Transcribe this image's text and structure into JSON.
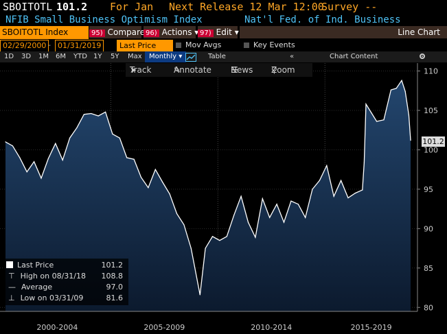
{
  "header": {
    "ticker": "SBOITOTL",
    "value": "101.2",
    "for_label": "For Jan",
    "next_release": "Next Release 12 Mar 12:00",
    "survey": "Survey --",
    "index_name": "NFIB Small Business Optimism Index",
    "source": "Nat'l Fed. of Ind. Business"
  },
  "toolbar_row": {
    "ticker_field": "SBOITOTL Index",
    "compare_num": "95)",
    "compare": "Compare",
    "actions_num": "96)",
    "actions": "Actions ▾",
    "edit_num": "97)",
    "edit": "Edit ▾",
    "chart_type": "Line Chart"
  },
  "date_row": {
    "start": "02/29/2000",
    "dash": "-",
    "end": "01/31/2019",
    "field": "Last Price",
    "mov_avgs": "Mov Avgs",
    "key_events": "Key Events"
  },
  "ranges_row": {
    "ranges": [
      "1D",
      "3D",
      "1M",
      "6M",
      "YTD",
      "1Y",
      "5Y",
      "Max"
    ],
    "period": "Monthly ▾",
    "table": "Table",
    "collapse": "«",
    "chart_content": "Chart Content",
    "settings_icon": "gear-icon"
  },
  "chart_tools": {
    "track": "Track",
    "annotate": "Annotate",
    "news": "News",
    "zoom": "Zoom"
  },
  "legend": {
    "last_price_label": "Last Price",
    "last_price_value": "101.2",
    "high_label": "High on 08/31/18",
    "high_value": "108.8",
    "average_label": "Average",
    "average_value": "97.0",
    "low_label": "Low on 03/31/09",
    "low_value": "81.6"
  },
  "last_badge": "101.2",
  "colors": {
    "line": "#ffffff",
    "area_top": "#23466e",
    "area_bottom": "#0c1a2e",
    "orange": "#ff9800"
  },
  "chart_data": {
    "type": "area",
    "title": "NFIB Small Business Optimism Index",
    "ylim": [
      79.5,
      111
    ],
    "yticks": [
      80,
      85,
      90,
      95,
      100,
      105,
      110
    ],
    "x_range": [
      "2000-02",
      "2019-01"
    ],
    "period_labels": [
      "2000-2004",
      "2005-2009",
      "2010-2014",
      "2015-2019"
    ],
    "series": [
      {
        "x": [
          "2000-02",
          "2000-06",
          "2000-10",
          "2001-02",
          "2001-06",
          "2001-10",
          "2002-02",
          "2002-06",
          "2002-10",
          "2003-02",
          "2003-06",
          "2003-10",
          "2004-02",
          "2004-06",
          "2004-10",
          "2005-02",
          "2005-06",
          "2005-10",
          "2006-02",
          "2006-06",
          "2006-10",
          "2007-02",
          "2007-06",
          "2007-10",
          "2008-02",
          "2008-06",
          "2008-10",
          "2009-03",
          "2009-06",
          "2009-10",
          "2010-02",
          "2010-06",
          "2010-10",
          "2011-02",
          "2011-06",
          "2011-10",
          "2012-02",
          "2012-06",
          "2012-10",
          "2013-02",
          "2013-06",
          "2013-10",
          "2014-02",
          "2014-06",
          "2014-10",
          "2015-02",
          "2015-06",
          "2015-10",
          "2016-02",
          "2016-06",
          "2016-10",
          "2016-11",
          "2016-12",
          "2017-03",
          "2017-06",
          "2017-10",
          "2018-02",
          "2018-05",
          "2018-08",
          "2018-10",
          "2018-12",
          "2019-01"
        ],
        "values": [
          101,
          100.5,
          99,
          97.2,
          98.5,
          96.4,
          98.9,
          100.8,
          98.7,
          101.5,
          102.8,
          104.5,
          104.6,
          104.3,
          104.8,
          102,
          101.5,
          99,
          98.8,
          96.5,
          95.2,
          97.5,
          95.9,
          94.4,
          91.9,
          90.5,
          87.5,
          81.6,
          87.5,
          89,
          88.5,
          89,
          91.7,
          94.1,
          90.8,
          88.9,
          93.8,
          91.4,
          93.1,
          90.8,
          93.5,
          93.1,
          91.4,
          95,
          96.1,
          98,
          94.1,
          96.1,
          93.9,
          94.5,
          94.9,
          98.4,
          105.8,
          104.7,
          103.6,
          103.8,
          107.6,
          107.8,
          108.8,
          107.4,
          104.4,
          101.2
        ]
      }
    ]
  }
}
